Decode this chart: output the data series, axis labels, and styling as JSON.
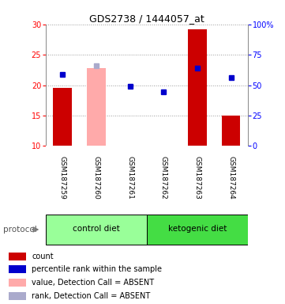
{
  "title": "GDS2738 / 1444057_at",
  "samples": [
    "GSM187259",
    "GSM187260",
    "GSM187261",
    "GSM187262",
    "GSM187263",
    "GSM187264"
  ],
  "bar_values": [
    19.5,
    22.8,
    10.1,
    10.1,
    29.2,
    15.0
  ],
  "bar_colors": [
    "#cc0000",
    "#ffaaaa",
    "#cc0000",
    "#cc0000",
    "#cc0000",
    "#cc0000"
  ],
  "bar_absent": [
    false,
    true,
    false,
    false,
    false,
    false
  ],
  "dot_values": [
    21.8,
    23.2,
    19.8,
    18.9,
    22.8,
    21.3
  ],
  "dot_absent": [
    false,
    true,
    false,
    false,
    false,
    false
  ],
  "dot_color_present": "#0000cc",
  "dot_color_absent": "#aaaacc",
  "ylim_left": [
    10,
    30
  ],
  "ylim_right": [
    0,
    100
  ],
  "yticks_left": [
    10,
    15,
    20,
    25,
    30
  ],
  "yticks_right": [
    0,
    25,
    50,
    75,
    100
  ],
  "ytick_labels_right": [
    "0",
    "25",
    "50",
    "75",
    "100%"
  ],
  "protocol_groups": [
    {
      "label": "control diet",
      "samples": [
        0,
        1,
        2
      ],
      "color": "#99ff99"
    },
    {
      "label": "ketogenic diet",
      "samples": [
        3,
        4,
        5
      ],
      "color": "#44dd44"
    }
  ],
  "protocol_label": "protocol",
  "legend_items": [
    {
      "color": "#cc0000",
      "label": "count"
    },
    {
      "color": "#0000cc",
      "label": "percentile rank within the sample"
    },
    {
      "color": "#ffaaaa",
      "label": "value, Detection Call = ABSENT"
    },
    {
      "color": "#aaaacc",
      "label": "rank, Detection Call = ABSENT"
    }
  ],
  "bg_color": "#ffffff",
  "plot_bg_color": "#ffffff",
  "grid_color": "#999999",
  "sample_box_color": "#cccccc",
  "bar_width": 0.55
}
